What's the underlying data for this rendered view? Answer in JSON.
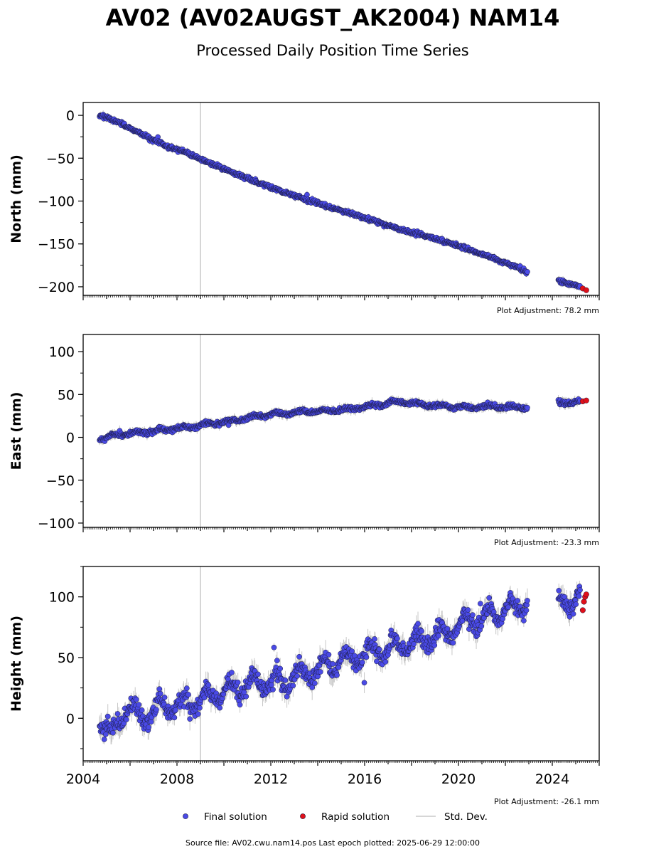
{
  "title": "AV02 (AV02AUGST_AK2004) NAM14",
  "subtitle": "Processed Daily Position Time Series",
  "footer": "Source file: AV02.cwu.nam14.pos  Last epoch plotted: 2025-06-29 12:00:00",
  "colors": {
    "final": "#4a4ae6",
    "rapid": "#e0101a",
    "stddev": "#c8c8c8",
    "edge": "#1a1a3a"
  },
  "legend": [
    "Final solution",
    "Rapid solution",
    "Std. Dev."
  ],
  "chart_data": [
    {
      "type": "scatter",
      "ylabel": "North (mm)",
      "xlim": [
        2004,
        2026
      ],
      "ylim": [
        -210,
        15
      ],
      "yticks": [
        "0",
        "−50",
        "−100",
        "−150",
        "−200"
      ],
      "ytick_values": [
        0,
        -50,
        -100,
        -150,
        -200
      ],
      "adjustment": "Plot Adjustment: 78.2 mm",
      "vline": 2009.0,
      "series": [
        {
          "name": "Final solution",
          "x": [
            2004.7,
            2005.5,
            2006.5,
            2007.5,
            2008.5,
            2009.5,
            2010.5,
            2011.5,
            2012.5,
            2013.5,
            2014.5,
            2015.5,
            2016.5,
            2017.5,
            2018.5,
            2019.5,
            2020.5,
            2021.5,
            2022.9,
            2024.3,
            2025.2
          ],
          "y": [
            0,
            -8,
            -22,
            -35,
            -45,
            -57,
            -68,
            -79,
            -89,
            -98,
            -107,
            -115,
            -124,
            -133,
            -140,
            -148,
            -157,
            -167,
            -182,
            -193,
            -200
          ]
        },
        {
          "name": "Rapid solution",
          "x": [
            2025.3,
            2025.45
          ],
          "y": [
            -202,
            -204
          ]
        }
      ]
    },
    {
      "type": "scatter",
      "ylabel": "East (mm)",
      "xlim": [
        2004,
        2026
      ],
      "ylim": [
        -105,
        120
      ],
      "yticks": [
        "100",
        "50",
        "0",
        "−50",
        "−100"
      ],
      "ytick_values": [
        100,
        50,
        0,
        -50,
        -100
      ],
      "adjustment": "Plot Adjustment: -23.3 mm",
      "vline": 2009.0,
      "series": [
        {
          "name": "Final solution",
          "x": [
            2004.7,
            2005.5,
            2006.5,
            2007.5,
            2008.5,
            2009.5,
            2010.5,
            2011.5,
            2012.5,
            2013.5,
            2014.5,
            2015.5,
            2016.5,
            2017.5,
            2018.5,
            2019.5,
            2020.5,
            2021.5,
            2022.9,
            2024.3,
            2025.2
          ],
          "y": [
            -2,
            3,
            6,
            9,
            12,
            16,
            20,
            25,
            28,
            30,
            31,
            33,
            37,
            42,
            38,
            36,
            35,
            36,
            35,
            40,
            42
          ]
        },
        {
          "name": "Rapid solution",
          "x": [
            2025.3,
            2025.45
          ],
          "y": [
            42,
            43
          ]
        }
      ]
    },
    {
      "type": "scatter",
      "ylabel": "Height (mm)",
      "xlim": [
        2004,
        2026
      ],
      "ylim": [
        -35,
        125
      ],
      "yticks": [
        "100",
        "50",
        "0"
      ],
      "ytick_values": [
        100,
        50,
        0
      ],
      "xticks": [
        "2004",
        "2008",
        "2012",
        "2016",
        "2020",
        "2024"
      ],
      "xtick_values": [
        2004,
        2008,
        2012,
        2016,
        2020,
        2024
      ],
      "adjustment": "Plot Adjustment: -26.1 mm",
      "vline": 2009.0,
      "series": [
        {
          "name": "Final solution",
          "x": [
            2004.7,
            2005.2,
            2005.9,
            2006.5,
            2007.5,
            2008.5,
            2009.5,
            2010.5,
            2011.5,
            2012.5,
            2013.5,
            2014.5,
            2015.5,
            2016.5,
            2017.5,
            2018.5,
            2019.5,
            2020.5,
            2021.5,
            2022.9,
            2024.3,
            2025.2
          ],
          "y": [
            0,
            -15,
            10,
            0,
            10,
            12,
            18,
            25,
            28,
            30,
            37,
            44,
            50,
            55,
            60,
            64,
            70,
            80,
            85,
            95,
            95,
            100
          ]
        },
        {
          "name": "Rapid solution",
          "x": [
            2025.3,
            2025.35,
            2025.4,
            2025.45
          ],
          "y": [
            89,
            96,
            100,
            102
          ]
        }
      ]
    }
  ]
}
